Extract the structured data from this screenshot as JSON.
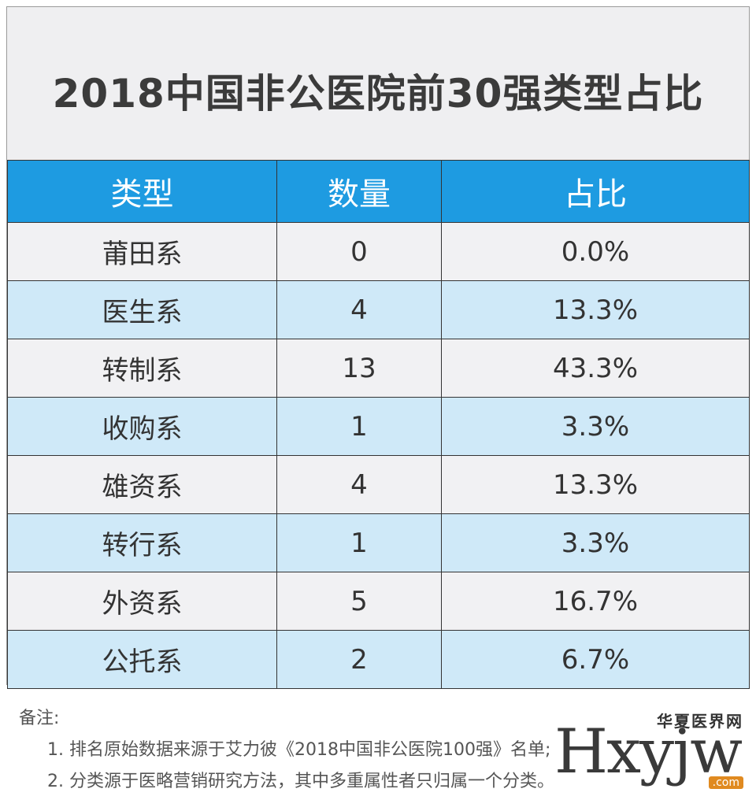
{
  "title": "2018中国非公医院前30强类型占比",
  "table": {
    "headers": [
      "类型",
      "数量",
      "占比"
    ],
    "rows": [
      [
        "莆田系",
        "0",
        "0.0%"
      ],
      [
        "医生系",
        "4",
        "13.3%"
      ],
      [
        "转制系",
        "13",
        "43.3%"
      ],
      [
        "收购系",
        "1",
        "3.3%"
      ],
      [
        "雄资系",
        "4",
        "13.3%"
      ],
      [
        "转行系",
        "1",
        "3.3%"
      ],
      [
        "外资系",
        "5",
        "16.7%"
      ],
      [
        "公托系",
        "2",
        "6.7%"
      ]
    ]
  },
  "notes": {
    "label": "备注:",
    "items": [
      "1. 排名原始数据来源于艾力彼《2018中国非公医院100强》名单;",
      "2. 分类源于医略营销研究方法，其中多重属性者只归属一个分类。"
    ]
  },
  "logo": {
    "cn": "华夏医界网",
    "latin": "Hxyjw",
    "domain": ".com"
  },
  "colors": {
    "header_bg": "#1e9be1",
    "row_light": "#f1f1f3",
    "row_blue": "#cfe9f8"
  }
}
